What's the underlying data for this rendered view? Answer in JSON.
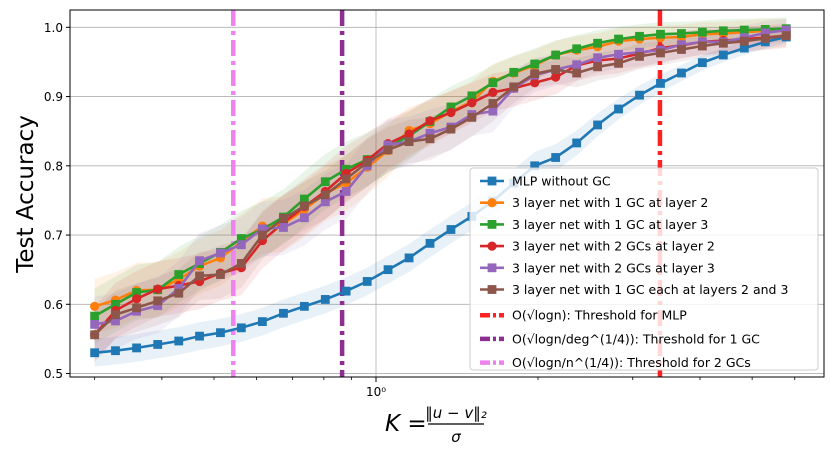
{
  "chart_data": {
    "type": "line",
    "title": "",
    "ylabel": "Test Accuracy",
    "xlabel_prefix": "K = ",
    "xlabel_numerator": "‖u − v‖₂",
    "xlabel_denominator": "σ",
    "xscale": "log",
    "xlim": [
      0.27,
      6.8
    ],
    "ylim": [
      0.495,
      1.025
    ],
    "x_ticks": [
      {
        "value": 1.0,
        "label": "10⁰"
      }
    ],
    "y_ticks": [
      {
        "value": 0.5,
        "label": "0.5"
      },
      {
        "value": 0.6,
        "label": "0.6"
      },
      {
        "value": 0.7,
        "label": "0.7"
      },
      {
        "value": 0.8,
        "label": "0.8"
      },
      {
        "value": 0.9,
        "label": "0.9"
      },
      {
        "value": 1.0,
        "label": "1.0"
      }
    ],
    "grid": true,
    "legend_position": "center-right",
    "x": [
      0.3,
      0.328,
      0.359,
      0.393,
      0.43,
      0.47,
      0.514,
      0.562,
      0.615,
      0.673,
      0.736,
      0.805,
      0.88,
      0.963,
      1.053,
      1.152,
      1.26,
      1.378,
      1.507,
      1.649,
      1.803,
      1.972,
      2.157,
      2.36,
      2.581,
      2.823,
      3.088,
      3.378,
      3.695,
      4.041,
      4.42,
      4.835,
      5.289,
      5.786
    ],
    "series": [
      {
        "name": "MLP without GC",
        "color": "#1f77b4",
        "marker": "square",
        "values": [
          0.53,
          0.533,
          0.537,
          0.542,
          0.547,
          0.554,
          0.559,
          0.566,
          0.575,
          0.587,
          0.597,
          0.607,
          0.619,
          0.633,
          0.65,
          0.667,
          0.688,
          0.708,
          0.727,
          0.749,
          0.775,
          0.8,
          0.812,
          0.833,
          0.859,
          0.882,
          0.902,
          0.919,
          0.934,
          0.949,
          0.96,
          0.97,
          0.979,
          0.986
        ]
      },
      {
        "name": "3 layer net with 1 GC at layer 2",
        "color": "#ff7f0e",
        "marker": "circle",
        "values": [
          0.597,
          0.606,
          0.62,
          0.621,
          0.636,
          0.655,
          0.667,
          0.69,
          0.713,
          0.716,
          0.737,
          0.76,
          0.775,
          0.798,
          0.822,
          0.851,
          0.861,
          0.878,
          0.893,
          0.922,
          0.934,
          0.945,
          0.96,
          0.967,
          0.972,
          0.98,
          0.983,
          0.985,
          0.986,
          0.99,
          0.991,
          0.993,
          0.995,
          0.996
        ]
      },
      {
        "name": "3 layer net with 1 GC at layer 3",
        "color": "#2ca02c",
        "marker": "square",
        "values": [
          0.583,
          0.6,
          0.617,
          0.621,
          0.643,
          0.659,
          0.675,
          0.695,
          0.708,
          0.726,
          0.752,
          0.777,
          0.795,
          0.809,
          0.827,
          0.843,
          0.864,
          0.885,
          0.901,
          0.92,
          0.935,
          0.947,
          0.96,
          0.969,
          0.977,
          0.983,
          0.987,
          0.99,
          0.991,
          0.993,
          0.995,
          0.996,
          0.997,
          0.998
        ]
      },
      {
        "name": "3 layer net with 2 GCs at layer 2",
        "color": "#d62728",
        "marker": "circle",
        "values": [
          0.556,
          0.591,
          0.608,
          0.622,
          0.627,
          0.633,
          0.645,
          0.653,
          0.692,
          0.718,
          0.741,
          0.763,
          0.789,
          0.808,
          0.832,
          0.846,
          0.865,
          0.877,
          0.891,
          0.906,
          0.912,
          0.92,
          0.928,
          0.945,
          0.952,
          0.955,
          0.962,
          0.97,
          0.974,
          0.979,
          0.981,
          0.983,
          0.985,
          0.988
        ]
      },
      {
        "name": "3 layer net with 2 GCs at layer 3",
        "color": "#9467bd",
        "marker": "square",
        "values": [
          0.571,
          0.576,
          0.59,
          0.598,
          0.623,
          0.663,
          0.674,
          0.686,
          0.709,
          0.711,
          0.725,
          0.748,
          0.763,
          0.8,
          0.83,
          0.835,
          0.847,
          0.856,
          0.874,
          0.879,
          0.912,
          0.931,
          0.939,
          0.946,
          0.956,
          0.961,
          0.964,
          0.967,
          0.975,
          0.979,
          0.979,
          0.985,
          0.992,
          0.996
        ]
      },
      {
        "name": "3 layer net with 1 GC each at layers 2 and 3",
        "color": "#8c564b",
        "marker": "square",
        "values": [
          0.556,
          0.585,
          0.595,
          0.605,
          0.616,
          0.641,
          0.643,
          0.659,
          0.7,
          0.724,
          0.742,
          0.758,
          0.781,
          0.805,
          0.823,
          0.835,
          0.839,
          0.853,
          0.87,
          0.89,
          0.914,
          0.933,
          0.939,
          0.934,
          0.943,
          0.948,
          0.958,
          0.963,
          0.968,
          0.973,
          0.977,
          0.98,
          0.984,
          0.988
        ]
      }
    ],
    "shaded_band_widths": [
      0.02,
      0.04,
      0.04,
      0.04,
      0.04,
      0.035
    ],
    "thresholds": [
      {
        "name": "O(√logn): Threshold for MLP",
        "value": 3.37,
        "color": "#ff2222"
      },
      {
        "name": "O(√logn/deg¹ᐟ⁴): Threshold for 1 GC",
        "value": 0.865,
        "color": "#8e2e91"
      },
      {
        "name": "O(√logn/n¹ᐟ⁴): Threshold for 2 GCs",
        "value": 0.543,
        "color": "#ee82ee"
      }
    ],
    "legend_entries": [
      "MLP without GC",
      "3 layer net with 1 GC at layer 2",
      "3 layer net with 1 GC at layer 3",
      "3 layer net with 2 GCs at layer 2",
      "3 layer net with 2 GCs at layer 3",
      "3 layer net with 1 GC each at layers 2 and 3",
      "O(√logn): Threshold for MLP",
      "O(√logn/deg^(1/4)): Threshold for 1 GC",
      "O(√logn/n^(1/4)): Threshold for 2 GCs"
    ]
  }
}
